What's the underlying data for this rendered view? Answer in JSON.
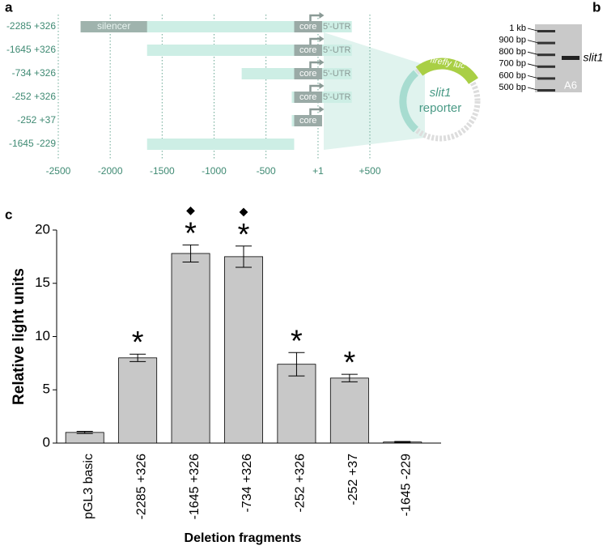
{
  "panel_labels": [
    "a",
    "b",
    "c"
  ],
  "diagram": {
    "xlim": [
      -2500,
      500
    ],
    "xticks": [
      -2500,
      -2000,
      -1500,
      -1000,
      -500,
      {
        "value": 1,
        "label": "+1"
      },
      {
        "value": 500,
        "label": "+500"
      }
    ],
    "silencer_label": "silencer",
    "core_label": "core",
    "utr_label": "5'-UTR",
    "silencer_region": [
      -2285,
      -1645
    ],
    "core_region": [
      -252,
      1
    ],
    "constructs": [
      {
        "label": "-2285 +326",
        "start": -2285,
        "end": 326,
        "silencer": true,
        "core": true,
        "utr": true
      },
      {
        "label": "-1645 +326",
        "start": -1645,
        "end": 326,
        "silencer": false,
        "core": true,
        "utr": true
      },
      {
        "label": "-734 +326",
        "start": -734,
        "end": 326,
        "silencer": false,
        "core": true,
        "utr": true
      },
      {
        "label": "-252 +326",
        "start": -252,
        "end": 326,
        "silencer": false,
        "core": true,
        "utr": true
      },
      {
        "label": "-252 +37",
        "start": -252,
        "end": 37,
        "silencer": false,
        "core": true,
        "utr": false
      },
      {
        "label": "-1645 -229",
        "start": -1645,
        "end": -229,
        "silencer": false,
        "core": false,
        "utr": false
      }
    ],
    "reporter": {
      "gene": "slit1",
      "text": "reporter",
      "luc": "firefly luc"
    }
  },
  "gel": {
    "ladder": [
      "1 kb",
      "900 bp",
      "800 bp",
      "700 bp",
      "600 bp",
      "500 bp"
    ],
    "band_label": "slit1",
    "lane_label": "A6"
  },
  "chart_data": {
    "type": "bar",
    "categories": [
      "pGL3 basic",
      "-2285 +326",
      "-1645 +326",
      "-734 +326",
      "-252 +326",
      "-252 +37",
      "-1645 -229"
    ],
    "values": [
      1.0,
      8.0,
      17.8,
      17.5,
      7.4,
      6.1,
      0.1
    ],
    "errors": [
      0.1,
      0.35,
      0.8,
      1.0,
      1.1,
      0.35,
      0.05
    ],
    "stars": [
      null,
      "*",
      "*",
      "*",
      "*",
      "*",
      null
    ],
    "diamonds": [
      null,
      null,
      "◆",
      "◆",
      null,
      null,
      null
    ],
    "color": "#c8c8c8",
    "ylim": [
      0,
      20
    ],
    "yticks": [
      0,
      5,
      10,
      15,
      20
    ],
    "ylabel": "Relative light units",
    "xlabel": "Deletion fragments"
  }
}
